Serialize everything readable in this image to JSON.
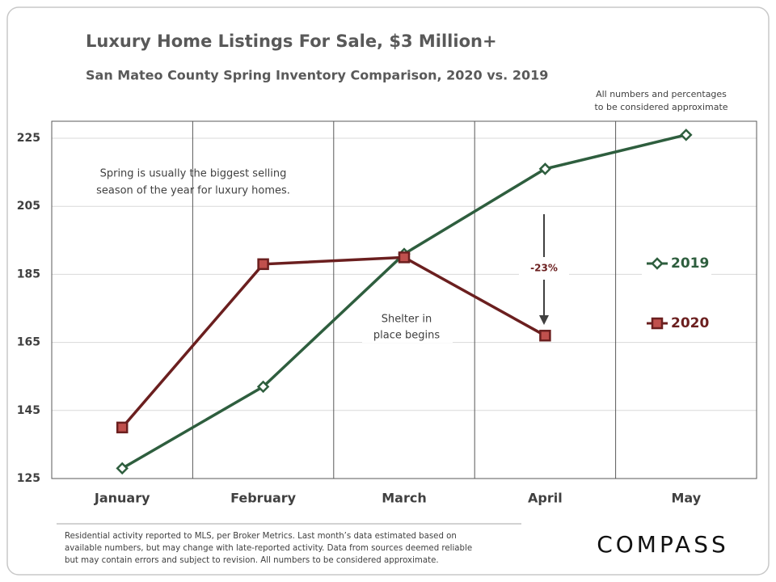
{
  "chart_data": {
    "type": "line",
    "title": "Luxury Home Listings For Sale, $3 Million+",
    "subtitle": "San Mateo County Spring Inventory Comparison,  2020 vs. 2019",
    "categories": [
      "January",
      "February",
      "March",
      "April",
      "May"
    ],
    "series": [
      {
        "name": "2019",
        "color": "#2e5e3e",
        "values": [
          128,
          152,
          191,
          216,
          226
        ]
      },
      {
        "name": "2020",
        "color": "#6b1f1f",
        "values": [
          140,
          188,
          190,
          167,
          null
        ]
      }
    ],
    "ylim": [
      125,
      230
    ],
    "yticks": [
      125,
      145,
      165,
      185,
      205,
      225
    ],
    "grid": true,
    "legend": "right",
    "annotations": {
      "approximate": [
        "All numbers and percentages",
        "to be considered approximate"
      ],
      "season": [
        "Spring is usually the biggest selling",
        "season of the year for luxury homes."
      ],
      "shelter": [
        "Shelter in",
        "place begins"
      ],
      "change": "-23%"
    },
    "footnote": [
      "Residential activity reported to MLS, per Broker Metrics. Last month’s data estimated based on",
      "available numbers, but may change with late-reported activity. Data from sources deemed reliable",
      "but may contain errors and subject to revision. All numbers to be considered approximate."
    ],
    "logo": "COMPASS"
  }
}
